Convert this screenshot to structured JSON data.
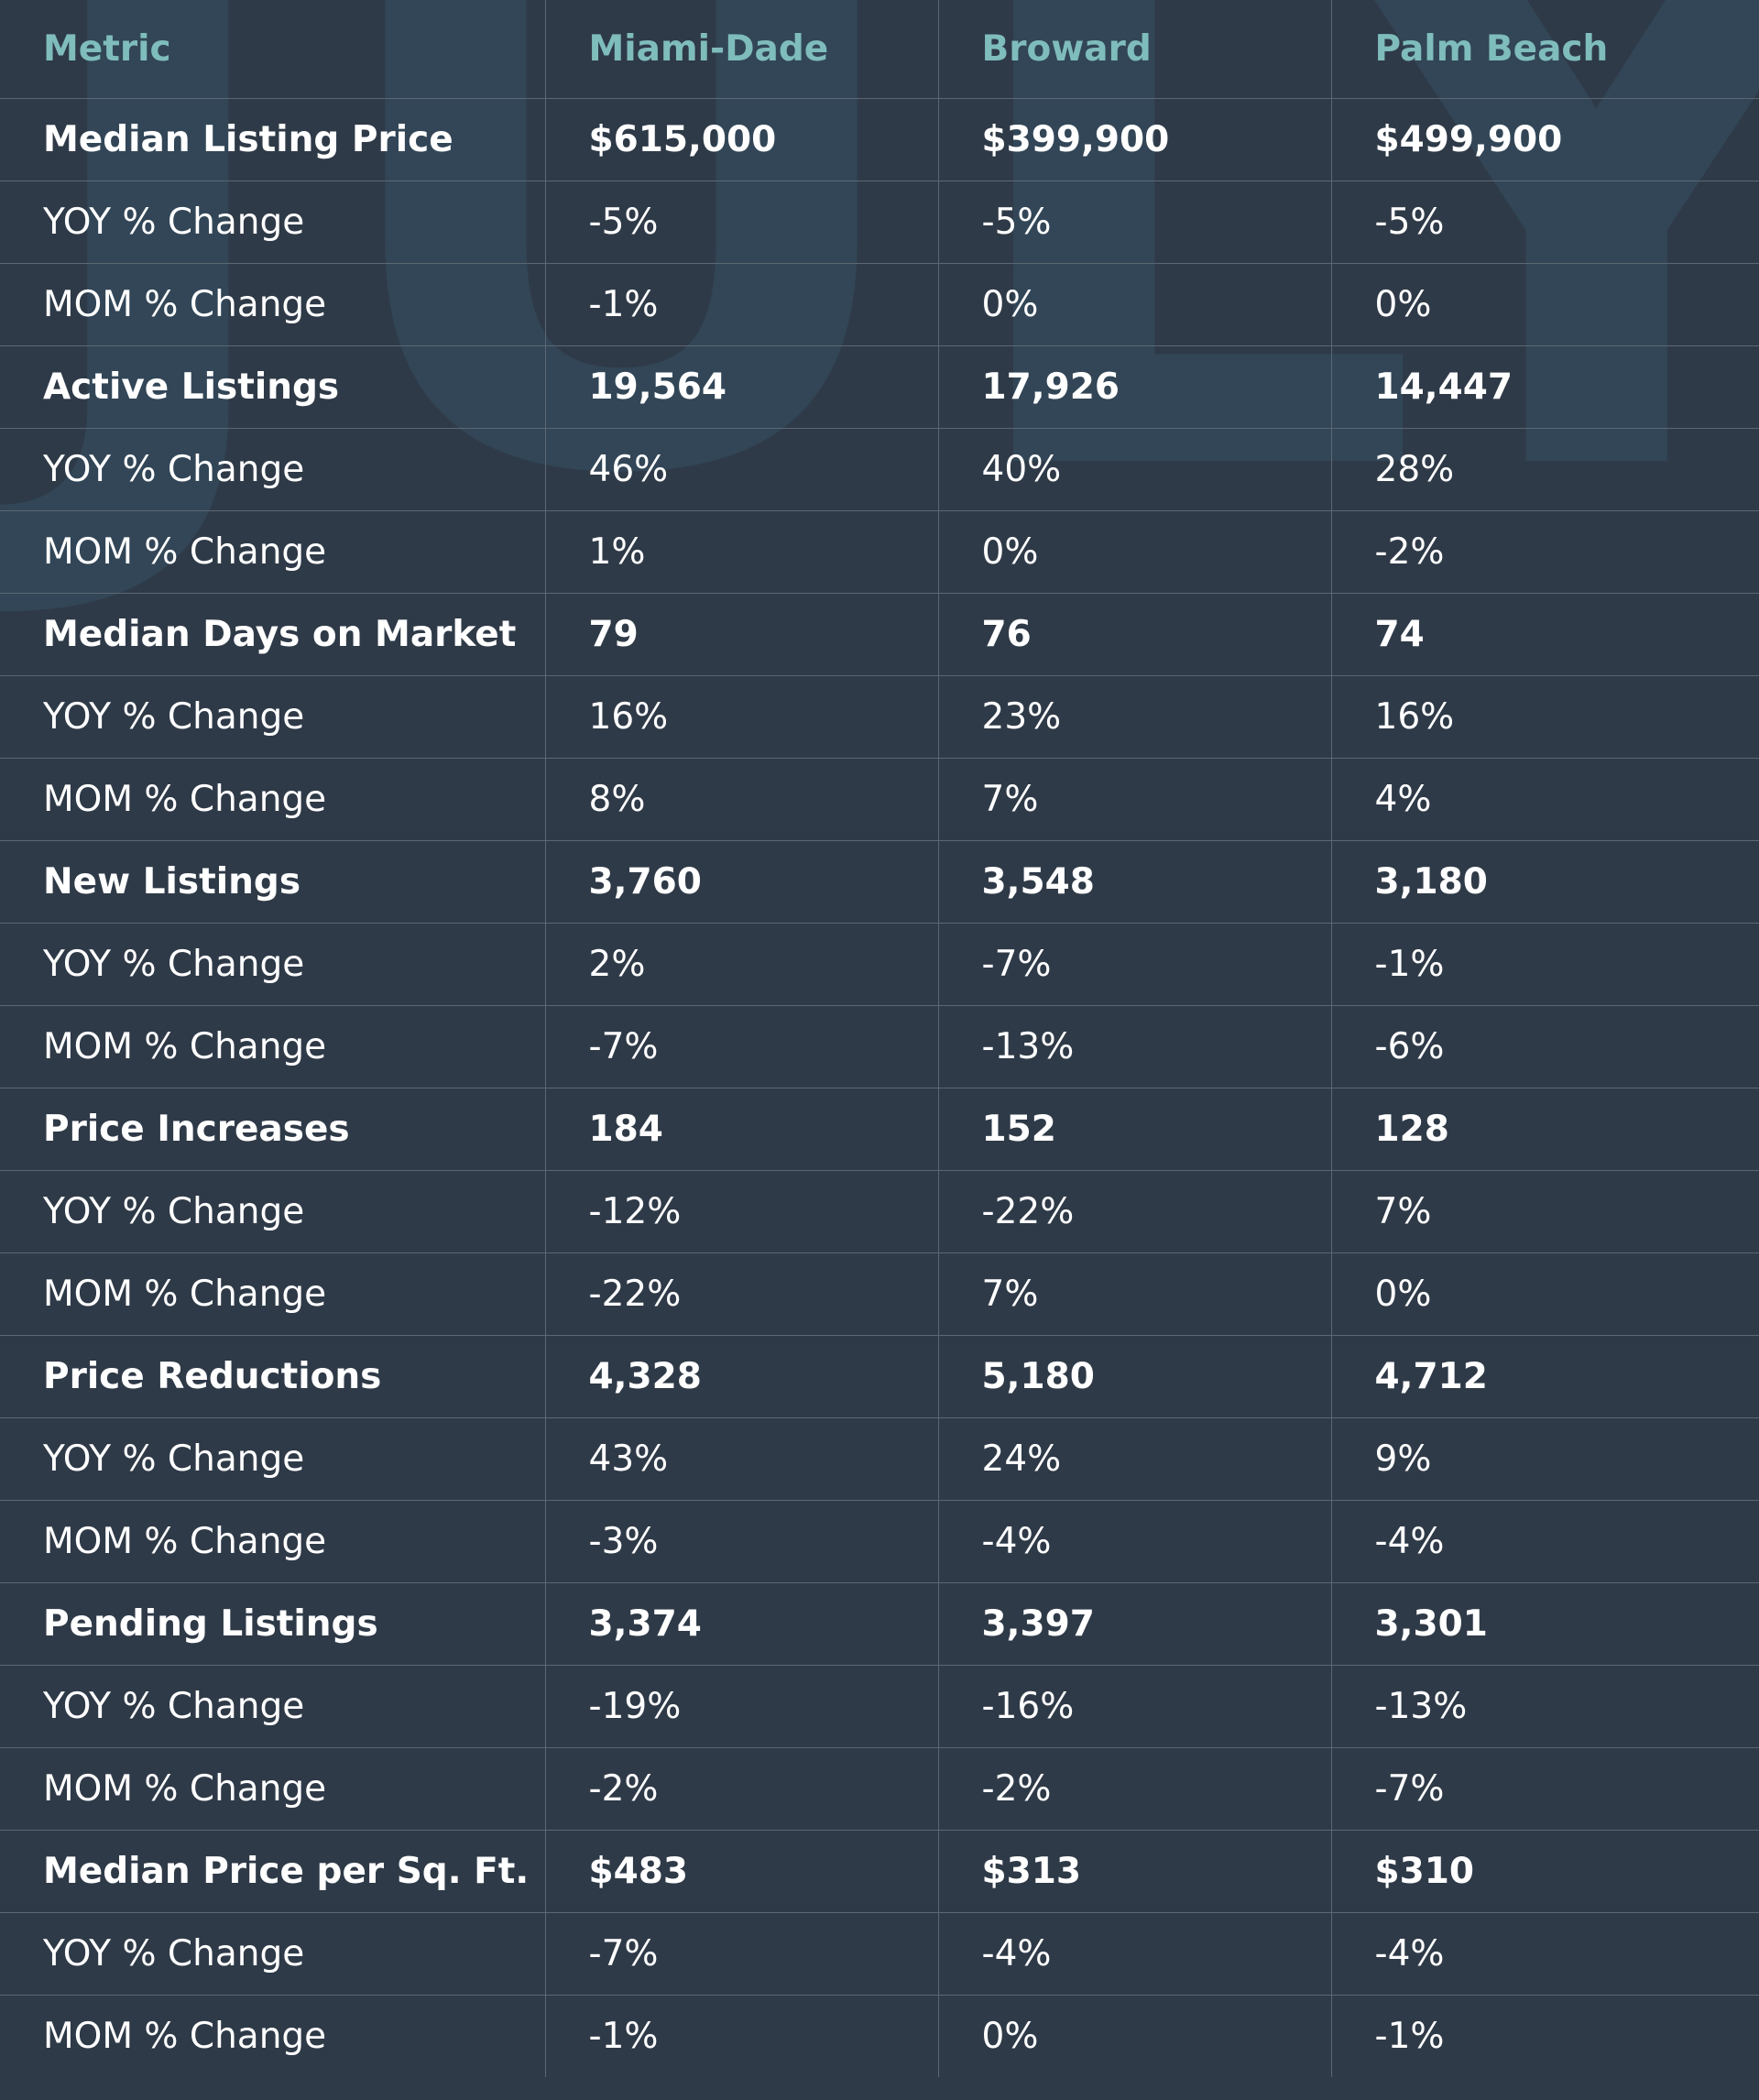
{
  "watermark": "JULY",
  "table": {
    "headers": [
      "Metric",
      "Miami-Dade",
      "Broward",
      "Palm Beach"
    ],
    "rows": [
      {
        "kind": "main",
        "cells": [
          "Median Listing Price",
          "$615,000",
          "$399,900",
          "$499,900"
        ]
      },
      {
        "kind": "sub",
        "cells": [
          "YOY % Change",
          "-5%",
          "-5%",
          "-5%"
        ]
      },
      {
        "kind": "sub",
        "cells": [
          "MOM % Change",
          "-1%",
          "0%",
          "0%"
        ]
      },
      {
        "kind": "main",
        "cells": [
          "Active Listings",
          "19,564",
          "17,926",
          "14,447"
        ]
      },
      {
        "kind": "sub",
        "cells": [
          "YOY % Change",
          "46%",
          "40%",
          "28%"
        ]
      },
      {
        "kind": "sub",
        "cells": [
          "MOM % Change",
          "1%",
          "0%",
          "-2%"
        ]
      },
      {
        "kind": "main",
        "cells": [
          "Median Days on Market",
          "79",
          "76",
          "74"
        ]
      },
      {
        "kind": "sub",
        "cells": [
          "YOY % Change",
          "16%",
          "23%",
          "16%"
        ]
      },
      {
        "kind": "sub",
        "cells": [
          "MOM % Change",
          "8%",
          "7%",
          "4%"
        ]
      },
      {
        "kind": "main",
        "cells": [
          "New Listings",
          "3,760",
          "3,548",
          "3,180"
        ]
      },
      {
        "kind": "sub",
        "cells": [
          "YOY % Change",
          "2%",
          "-7%",
          "-1%"
        ]
      },
      {
        "kind": "sub",
        "cells": [
          "MOM % Change",
          "-7%",
          "-13%",
          "-6%"
        ]
      },
      {
        "kind": "main",
        "cells": [
          "Price Increases",
          "184",
          "152",
          "128"
        ]
      },
      {
        "kind": "sub",
        "cells": [
          "YOY % Change",
          "-12%",
          "-22%",
          "7%"
        ]
      },
      {
        "kind": "sub",
        "cells": [
          "MOM % Change",
          "-22%",
          "7%",
          "0%"
        ]
      },
      {
        "kind": "main",
        "cells": [
          "Price Reductions",
          "4,328",
          "5,180",
          "4,712"
        ]
      },
      {
        "kind": "sub",
        "cells": [
          "YOY % Change",
          "43%",
          "24%",
          "9%"
        ]
      },
      {
        "kind": "sub",
        "cells": [
          "MOM % Change",
          "-3%",
          "-4%",
          "-4%"
        ]
      },
      {
        "kind": "main",
        "cells": [
          "Pending Listings",
          "3,374",
          "3,397",
          "3,301"
        ]
      },
      {
        "kind": "sub",
        "cells": [
          "YOY % Change",
          "-19%",
          "-16%",
          "-13%"
        ]
      },
      {
        "kind": "sub",
        "cells": [
          "MOM % Change",
          "-2%",
          "-2%",
          "-7%"
        ]
      },
      {
        "kind": "main",
        "cells": [
          "Median Price per Sq. Ft.",
          "$483",
          "$313",
          "$310"
        ]
      },
      {
        "kind": "sub",
        "cells": [
          "YOY % Change",
          "-7%",
          "-4%",
          "-4%"
        ]
      },
      {
        "kind": "sub",
        "cells": [
          "MOM % Change",
          "-1%",
          "0%",
          "-1%"
        ]
      }
    ]
  },
  "colors": {
    "background": "#2f3a48",
    "header_text": "#7fbcbc",
    "body_text": "#ffffff",
    "grid": "#5d6774",
    "watermark": "#33495a"
  }
}
